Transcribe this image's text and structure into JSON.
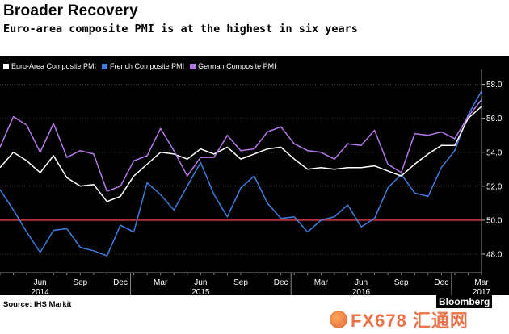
{
  "title": "Broader Recovery",
  "subtitle": "Euro-area composite PMI is at the highest in six years",
  "source": "Source: IHS Markit",
  "brand": "Bloomberg",
  "watermark": "FX678 汇通网",
  "chart_data": {
    "type": "line",
    "title": "Broader Recovery",
    "xlabel": "",
    "ylabel": "",
    "ylim": [
      47.0,
      58.6
    ],
    "grid": true,
    "legend_placement": "top-left",
    "y_ticks": [
      48.0,
      50.0,
      52.0,
      54.0,
      56.0,
      58.0
    ],
    "y_tick_labels": [
      "48.0",
      "50.0",
      "52.0",
      "54.0",
      "56.0",
      "58.0"
    ],
    "x_ticks": [
      {
        "month": "Jun",
        "year": "2014"
      },
      {
        "month": "Sep",
        "year": ""
      },
      {
        "month": "Dec",
        "year": ""
      },
      {
        "month": "Mar",
        "year": ""
      },
      {
        "month": "Jun",
        "year": "2015"
      },
      {
        "month": "Sep",
        "year": ""
      },
      {
        "month": "Dec",
        "year": ""
      },
      {
        "month": "Mar",
        "year": ""
      },
      {
        "month": "Jun",
        "year": "2016"
      },
      {
        "month": "Sep",
        "year": ""
      },
      {
        "month": "Dec",
        "year": ""
      },
      {
        "month": "Mar",
        "year": "2017"
      }
    ],
    "x": [
      "2014-03",
      "2014-04",
      "2014-05",
      "2014-06",
      "2014-07",
      "2014-08",
      "2014-09",
      "2014-10",
      "2014-11",
      "2014-12",
      "2015-01",
      "2015-02",
      "2015-03",
      "2015-04",
      "2015-05",
      "2015-06",
      "2015-07",
      "2015-08",
      "2015-09",
      "2015-10",
      "2015-11",
      "2015-12",
      "2016-01",
      "2016-02",
      "2016-03",
      "2016-04",
      "2016-05",
      "2016-06",
      "2016-07",
      "2016-08",
      "2016-09",
      "2016-10",
      "2016-11",
      "2016-12",
      "2017-01",
      "2017-02",
      "2017-03"
    ],
    "reference_line": {
      "value": 50.0,
      "color": "#e8404a"
    },
    "series": [
      {
        "name": "Euro-Area Composite PMI",
        "color": "#ffffff",
        "values": [
          53.1,
          54.0,
          53.5,
          52.8,
          53.8,
          52.5,
          52.0,
          52.1,
          51.1,
          51.4,
          52.6,
          53.3,
          54.0,
          53.9,
          53.6,
          54.2,
          53.9,
          54.3,
          53.6,
          53.9,
          54.2,
          54.3,
          53.6,
          53.0,
          53.1,
          53.0,
          53.1,
          53.1,
          53.2,
          52.9,
          52.6,
          53.3,
          53.9,
          54.4,
          54.4,
          56.0,
          56.7
        ]
      },
      {
        "name": "French Composite PMI",
        "color": "#3d7ee0",
        "values": [
          51.8,
          50.6,
          49.3,
          48.1,
          49.4,
          49.5,
          48.4,
          48.2,
          47.9,
          49.7,
          49.3,
          52.2,
          51.5,
          50.6,
          52.0,
          53.4,
          51.5,
          50.2,
          51.9,
          52.6,
          51.0,
          50.1,
          50.2,
          49.3,
          50.0,
          50.2,
          50.9,
          49.6,
          50.1,
          51.9,
          52.7,
          51.6,
          51.4,
          53.1,
          54.1,
          56.2,
          57.6
        ]
      },
      {
        "name": "German Composite PMI",
        "color": "#b678e8",
        "values": [
          54.3,
          56.1,
          55.6,
          54.0,
          55.7,
          53.7,
          54.1,
          53.9,
          51.7,
          52.0,
          53.5,
          53.8,
          55.4,
          54.1,
          52.6,
          53.7,
          53.7,
          55.0,
          54.1,
          54.2,
          55.2,
          55.5,
          54.5,
          54.1,
          54.0,
          53.6,
          54.5,
          54.4,
          55.3,
          53.3,
          52.8,
          55.1,
          55.0,
          55.2,
          54.8,
          56.1,
          57.1
        ]
      }
    ]
  }
}
